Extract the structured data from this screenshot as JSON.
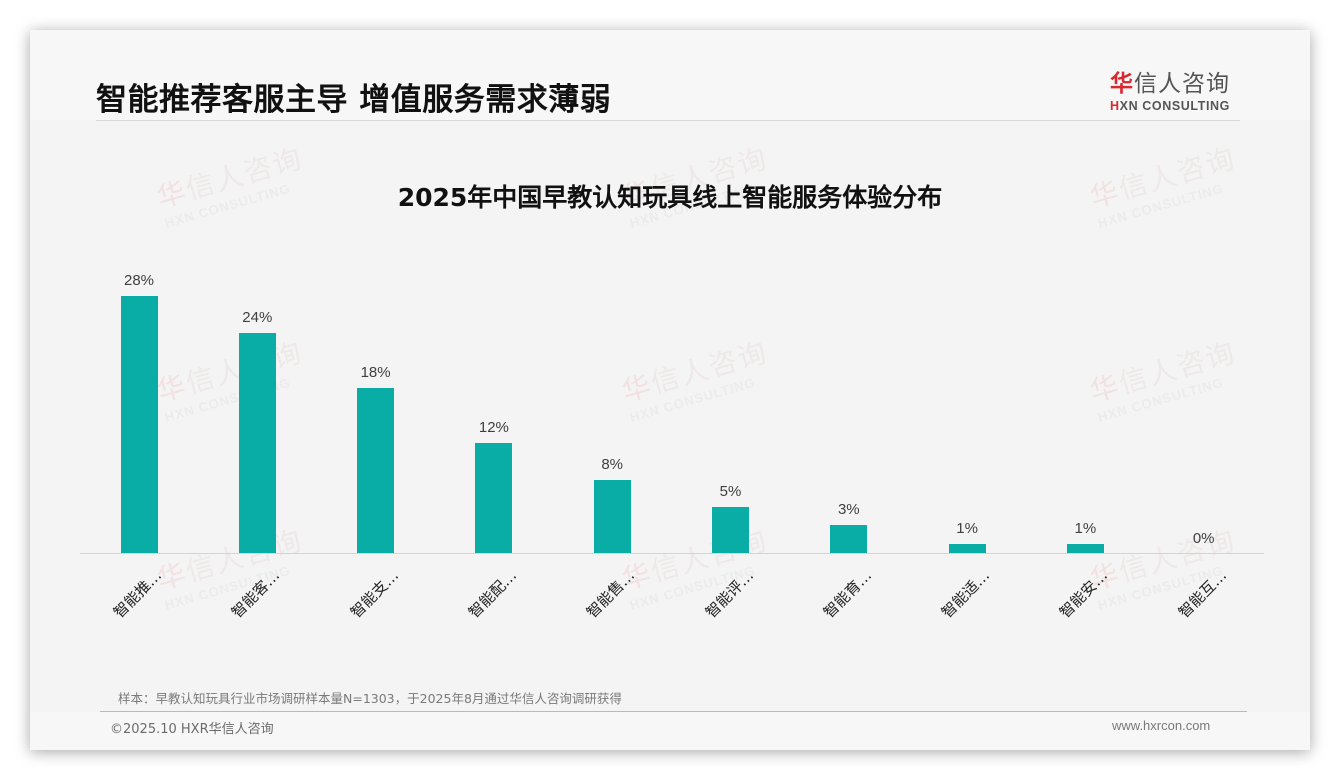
{
  "header": {
    "title": "智能推荐客服主导 增值服务需求薄弱",
    "logo": {
      "cn_accent": "华",
      "cn_rest": "信人咨询",
      "en_accent": "H",
      "en_rest": "XN CONSULTING"
    }
  },
  "watermark": {
    "cn_accent": "华",
    "cn_rest": "信人咨询",
    "en": "HXN CONSULTING"
  },
  "chart_data": {
    "type": "bar",
    "title": "2025年中国早教认知玩具线上智能服务体验分布",
    "categories": [
      "智能推…",
      "智能客…",
      "智能支…",
      "智能配…",
      "智能售…",
      "智能评…",
      "智能育…",
      "智能适…",
      "智能安…",
      "智能互…"
    ],
    "values": [
      28,
      24,
      18,
      12,
      8,
      5,
      3,
      1,
      1,
      0
    ],
    "value_labels": [
      "28%",
      "24%",
      "18%",
      "12%",
      "8%",
      "5%",
      "3%",
      "1%",
      "1%",
      "0%"
    ],
    "xlabel": "",
    "ylabel": "",
    "ylim": [
      0,
      30
    ],
    "unit": "%",
    "grid": false,
    "legend": null,
    "bar_color": "#0aada5"
  },
  "footer": {
    "sample_note": "样本：早教认知玩具行业市场调研样本量N=1303，于2025年8月通过华信人咨询调研获得",
    "copyright": "©2025.10 HXR华信人咨询",
    "website": "www.hxrcon.com"
  }
}
